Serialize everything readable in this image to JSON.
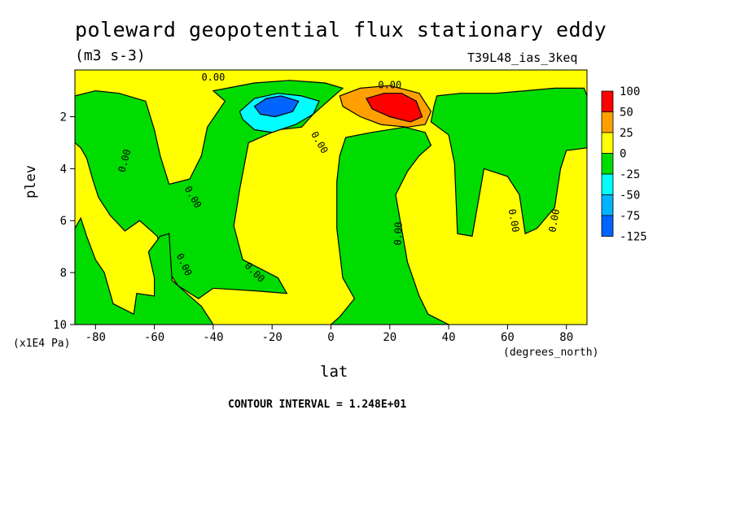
{
  "chart_data": {
    "type": "heatmap",
    "title": "poleward geopotential flux stationary eddy",
    "units": "(m3 s-3)",
    "run_id": "T39L48_ias_3keq",
    "xlabel": "lat",
    "x_units": "(degrees_north)",
    "ylabel": "plev",
    "y_units": "(x1E4 Pa)",
    "xlim": [
      -87,
      87
    ],
    "ylim": [
      10,
      0.2
    ],
    "x_ticks": [
      -80,
      -60,
      -40,
      -20,
      0,
      20,
      40,
      60,
      80
    ],
    "x_tick_labels": [
      "-80",
      "-60",
      "-40",
      "-20",
      "0",
      "20",
      "40",
      "60",
      "80"
    ],
    "y_ticks": [
      2,
      4,
      6,
      8,
      10
    ],
    "y_tick_labels": [
      "2",
      "4",
      "6",
      "8",
      "10"
    ],
    "contour_interval_text": "CONTOUR INTERVAL = 1.248E+01",
    "contour_labels": [
      {
        "text": "0.00",
        "lat": -40,
        "plev": 0.5,
        "angle": 0
      },
      {
        "text": "0.00",
        "lat": 20,
        "plev": 0.8,
        "angle": 0
      },
      {
        "text": "0.00",
        "lat": -70,
        "plev": 3.7,
        "angle": -75
      },
      {
        "text": "0.00",
        "lat": -4,
        "plev": 3.0,
        "angle": 60
      },
      {
        "text": "0.00",
        "lat": -47,
        "plev": 5.1,
        "angle": 60
      },
      {
        "text": "0.00",
        "lat": -50,
        "plev": 7.7,
        "angle": 65
      },
      {
        "text": "0.00",
        "lat": -26,
        "plev": 8.0,
        "angle": 45
      },
      {
        "text": "0.00",
        "lat": 23,
        "plev": 6.5,
        "angle": -88
      },
      {
        "text": "0.00",
        "lat": 62,
        "plev": 6.0,
        "angle": 80
      },
      {
        "text": "0.00",
        "lat": 76,
        "plev": 6.0,
        "angle": -80
      }
    ],
    "legend": {
      "position": "right",
      "levels": [
        "100",
        "50",
        "25",
        "0",
        "-25",
        "-50",
        "-75",
        "-125"
      ],
      "colors": [
        "#ff0000",
        "#ffa000",
        "#ffff00",
        "#00dc00",
        "#00ffff",
        "#00b4ff",
        "#0064ff"
      ]
    },
    "regions": [
      {
        "name": "background",
        "value_range": "0 to 25",
        "color": "#ffff00"
      },
      {
        "name": "negative-band-sh-polar",
        "value_range": "-25 to 0",
        "color": "#00dc00",
        "outline": [
          [
            -87,
            1.2
          ],
          [
            -80,
            1.0
          ],
          [
            -72,
            1.1
          ],
          [
            -63,
            1.4
          ],
          [
            -60,
            2.5
          ],
          [
            -58,
            3.5
          ],
          [
            -55,
            4.6
          ],
          [
            -48,
            4.4
          ],
          [
            -44,
            3.5
          ],
          [
            -42,
            2.4
          ],
          [
            -36,
            1.4
          ],
          [
            -40,
            1.0
          ],
          [
            -26,
            0.7
          ],
          [
            -14,
            0.6
          ],
          [
            -2,
            0.7
          ],
          [
            4,
            0.9
          ],
          [
            0,
            1.3
          ],
          [
            -6,
            1.9
          ],
          [
            -10,
            2.4
          ],
          [
            -18,
            2.5
          ],
          [
            -28,
            3.0
          ],
          [
            -31,
            4.8
          ],
          [
            -33,
            6.2
          ],
          [
            -30,
            7.5
          ],
          [
            -18,
            8.2
          ],
          [
            -15,
            8.8
          ],
          [
            -26,
            8.7
          ],
          [
            -40,
            8.6
          ],
          [
            -45,
            9.0
          ],
          [
            -52,
            8.5
          ],
          [
            -56,
            7.8
          ],
          [
            -59,
            6.6
          ],
          [
            -65,
            6.0
          ],
          [
            -70,
            6.4
          ],
          [
            -75,
            5.8
          ],
          [
            -79,
            5.1
          ],
          [
            -81,
            4.4
          ],
          [
            -83,
            3.6
          ],
          [
            -85,
            3.2
          ],
          [
            -87,
            3.0
          ]
        ]
      },
      {
        "name": "sh-polar-lowlevel-negative",
        "value_range": "-25 to 0",
        "color": "#00dc00",
        "outline": [
          [
            -87,
            6.3
          ],
          [
            -85,
            5.9
          ],
          [
            -83,
            6.6
          ],
          [
            -80,
            7.5
          ],
          [
            -77,
            8.0
          ],
          [
            -74,
            9.2
          ],
          [
            -67,
            9.6
          ],
          [
            -66,
            8.8
          ],
          [
            -60,
            8.9
          ],
          [
            -60,
            8.2
          ],
          [
            -62,
            7.2
          ],
          [
            -58,
            6.6
          ],
          [
            -55,
            6.5
          ],
          [
            -54,
            8.3
          ],
          [
            -48,
            8.9
          ],
          [
            -44,
            9.3
          ],
          [
            -40,
            10
          ],
          [
            -87,
            10
          ]
        ]
      },
      {
        "name": "tropical-negative-region",
        "value_range": "-25 to 0",
        "color": "#00dc00",
        "outline": [
          [
            5,
            2.8
          ],
          [
            14,
            2.6
          ],
          [
            25,
            2.4
          ],
          [
            32,
            2.6
          ],
          [
            34,
            3.1
          ],
          [
            30,
            3.5
          ],
          [
            26,
            4.1
          ],
          [
            22,
            5.0
          ],
          [
            26,
            7.6
          ],
          [
            30,
            8.9
          ],
          [
            33,
            9.6
          ],
          [
            40,
            10
          ],
          [
            0,
            10
          ],
          [
            3,
            9.7
          ],
          [
            8,
            9.0
          ],
          [
            4,
            8.2
          ],
          [
            2,
            6.3
          ],
          [
            2,
            4.5
          ],
          [
            3,
            3.5
          ]
        ]
      },
      {
        "name": "nh-negative-region",
        "value_range": "-25 to 0",
        "color": "#00dc00",
        "outline": [
          [
            36,
            1.2
          ],
          [
            44,
            1.1
          ],
          [
            56,
            1.1
          ],
          [
            66,
            1.0
          ],
          [
            76,
            0.9
          ],
          [
            86,
            0.9
          ],
          [
            87,
            1.2
          ],
          [
            87,
            3.2
          ],
          [
            80,
            3.3
          ],
          [
            78,
            4.0
          ],
          [
            76,
            5.5
          ],
          [
            70,
            6.3
          ],
          [
            66,
            6.5
          ],
          [
            64,
            5.0
          ],
          [
            60,
            4.3
          ],
          [
            52,
            4.0
          ],
          [
            48,
            6.6
          ],
          [
            43,
            6.5
          ],
          [
            42,
            3.8
          ],
          [
            40,
            2.7
          ],
          [
            34,
            2.2
          ],
          [
            35,
            1.6
          ]
        ]
      },
      {
        "name": "sh-stratosphere-low",
        "value_range": "-100 to -25",
        "color": "#00ffff",
        "outline": [
          [
            -31,
            1.8
          ],
          [
            -26,
            1.3
          ],
          [
            -18,
            1.1
          ],
          [
            -10,
            1.2
          ],
          [
            -4,
            1.4
          ],
          [
            -6,
            1.9
          ],
          [
            -12,
            2.3
          ],
          [
            -20,
            2.6
          ],
          [
            -26,
            2.5
          ],
          [
            -30,
            2.1
          ]
        ]
      },
      {
        "name": "sh-stratosphere-low-core",
        "value_range": "-100 to -75",
        "color": "#0064ff",
        "outline": [
          [
            -26,
            1.6
          ],
          [
            -22,
            1.3
          ],
          [
            -17,
            1.2
          ],
          [
            -11,
            1.4
          ],
          [
            -13,
            1.8
          ],
          [
            -19,
            2.0
          ],
          [
            -24,
            1.9
          ]
        ]
      },
      {
        "name": "nh-stratosphere-high",
        "value_range": "25 to 100",
        "color": "#ffa000",
        "outline": [
          [
            3,
            1.2
          ],
          [
            10,
            0.9
          ],
          [
            20,
            0.8
          ],
          [
            30,
            1.1
          ],
          [
            34,
            1.8
          ],
          [
            32,
            2.3
          ],
          [
            26,
            2.4
          ],
          [
            17,
            2.3
          ],
          [
            10,
            2.0
          ],
          [
            4,
            1.6
          ]
        ]
      },
      {
        "name": "nh-stratosphere-high-core",
        "value_range": "50 to 100",
        "color": "#ff0000",
        "outline": [
          [
            12,
            1.3
          ],
          [
            18,
            1.1
          ],
          [
            24,
            1.1
          ],
          [
            29,
            1.4
          ],
          [
            31,
            2.0
          ],
          [
            27,
            2.2
          ],
          [
            20,
            2.0
          ],
          [
            14,
            1.7
          ]
        ]
      }
    ]
  }
}
